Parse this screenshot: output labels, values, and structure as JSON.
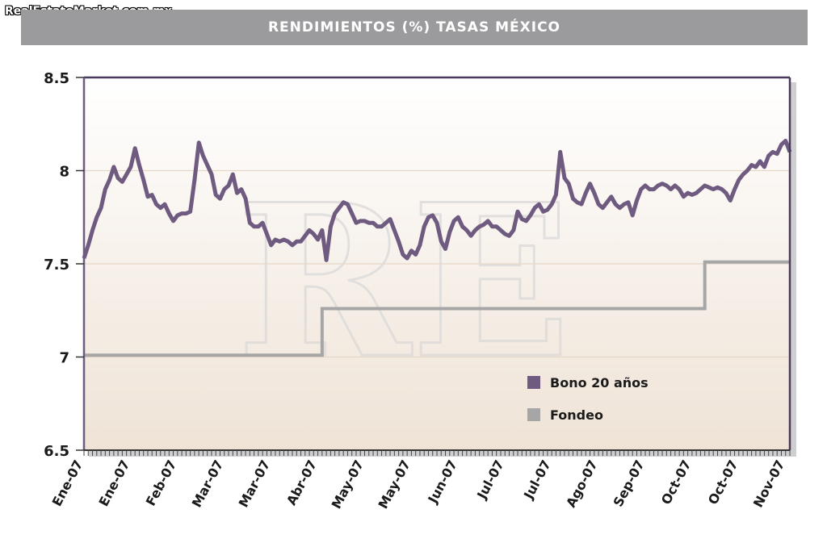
{
  "site_watermark": "RealEstateMarket.com.mx",
  "header": {
    "title": "RENDIMIENTOS (%) TASAS MÉXICO"
  },
  "colors": {
    "bono": "#6f5a80",
    "fondeo": "#a6a6a6",
    "title_bar": "#9b9b9e",
    "frame": "#4a3a5c"
  },
  "chart_data": {
    "type": "line",
    "title": "RENDIMIENTOS (%) TASAS MÉXICO",
    "xlabel": "",
    "ylabel": "",
    "ylim": [
      6.5,
      8.5
    ],
    "yticks": [
      "8.5",
      "8",
      "7.5",
      "7",
      "6.5"
    ],
    "yticks_values": [
      8.5,
      8,
      7.5,
      7,
      6.5
    ],
    "xticks": [
      "Ene-07",
      "Ene-07",
      "Feb-07",
      "Mar-07",
      "Mar-07",
      "Abr-07",
      "May-07",
      "May-07",
      "Jun-07",
      "Jul-07",
      "Jul-07",
      "Ago-07",
      "Sep-07",
      "Oct-07",
      "Oct-07",
      "Nov-07"
    ],
    "legend_position": "bottom-right",
    "grid": true,
    "series": [
      {
        "name": "Bono 20 años",
        "color": "#6f5a80",
        "values": [
          7.53,
          7.6,
          7.68,
          7.75,
          7.8,
          7.9,
          7.95,
          8.02,
          7.96,
          7.94,
          7.98,
          8.02,
          8.12,
          8.03,
          7.95,
          7.86,
          7.87,
          7.82,
          7.8,
          7.82,
          7.77,
          7.73,
          7.76,
          7.77,
          7.77,
          7.78,
          7.95,
          8.15,
          8.08,
          8.03,
          7.98,
          7.87,
          7.85,
          7.9,
          7.92,
          7.98,
          7.88,
          7.9,
          7.85,
          7.72,
          7.7,
          7.7,
          7.72,
          7.66,
          7.6,
          7.63,
          7.62,
          7.63,
          7.62,
          7.6,
          7.62,
          7.62,
          7.65,
          7.68,
          7.66,
          7.63,
          7.68,
          7.52,
          7.7,
          7.77,
          7.8,
          7.83,
          7.82,
          7.77,
          7.72,
          7.73,
          7.73,
          7.72,
          7.72,
          7.7,
          7.7,
          7.72,
          7.74,
          7.68,
          7.62,
          7.55,
          7.53,
          7.57,
          7.55,
          7.6,
          7.7,
          7.75,
          7.76,
          7.72,
          7.62,
          7.58,
          7.67,
          7.73,
          7.75,
          7.7,
          7.68,
          7.65,
          7.68,
          7.7,
          7.71,
          7.73,
          7.7,
          7.7,
          7.68,
          7.66,
          7.65,
          7.68,
          7.78,
          7.74,
          7.73,
          7.76,
          7.8,
          7.82,
          7.78,
          7.79,
          7.82,
          7.87,
          8.1,
          7.96,
          7.93,
          7.85,
          7.83,
          7.82,
          7.88,
          7.93,
          7.88,
          7.82,
          7.8,
          7.83,
          7.86,
          7.82,
          7.8,
          7.82,
          7.83,
          7.76,
          7.84,
          7.9,
          7.92,
          7.9,
          7.9,
          7.92,
          7.93,
          7.92,
          7.9,
          7.92,
          7.9,
          7.86,
          7.88,
          7.87,
          7.88,
          7.9,
          7.92,
          7.91,
          7.9,
          7.91,
          7.9,
          7.88,
          7.84,
          7.9,
          7.95,
          7.98,
          8.0,
          8.03,
          8.02,
          8.05,
          8.02,
          8.08,
          8.1,
          8.09,
          8.14,
          8.16,
          8.1
        ]
      },
      {
        "name": "Fondeo",
        "color": "#a6a6a6",
        "values_step": [
          {
            "from_index": 0,
            "value": 7.01
          },
          {
            "from_index": 56,
            "value": 7.26
          },
          {
            "from_index": 146,
            "value": 7.51
          }
        ]
      }
    ],
    "legend": [
      {
        "label": "Bono 20 años",
        "color": "#6f5a80"
      },
      {
        "label": "Fondeo",
        "color": "#a6a6a6"
      }
    ]
  }
}
